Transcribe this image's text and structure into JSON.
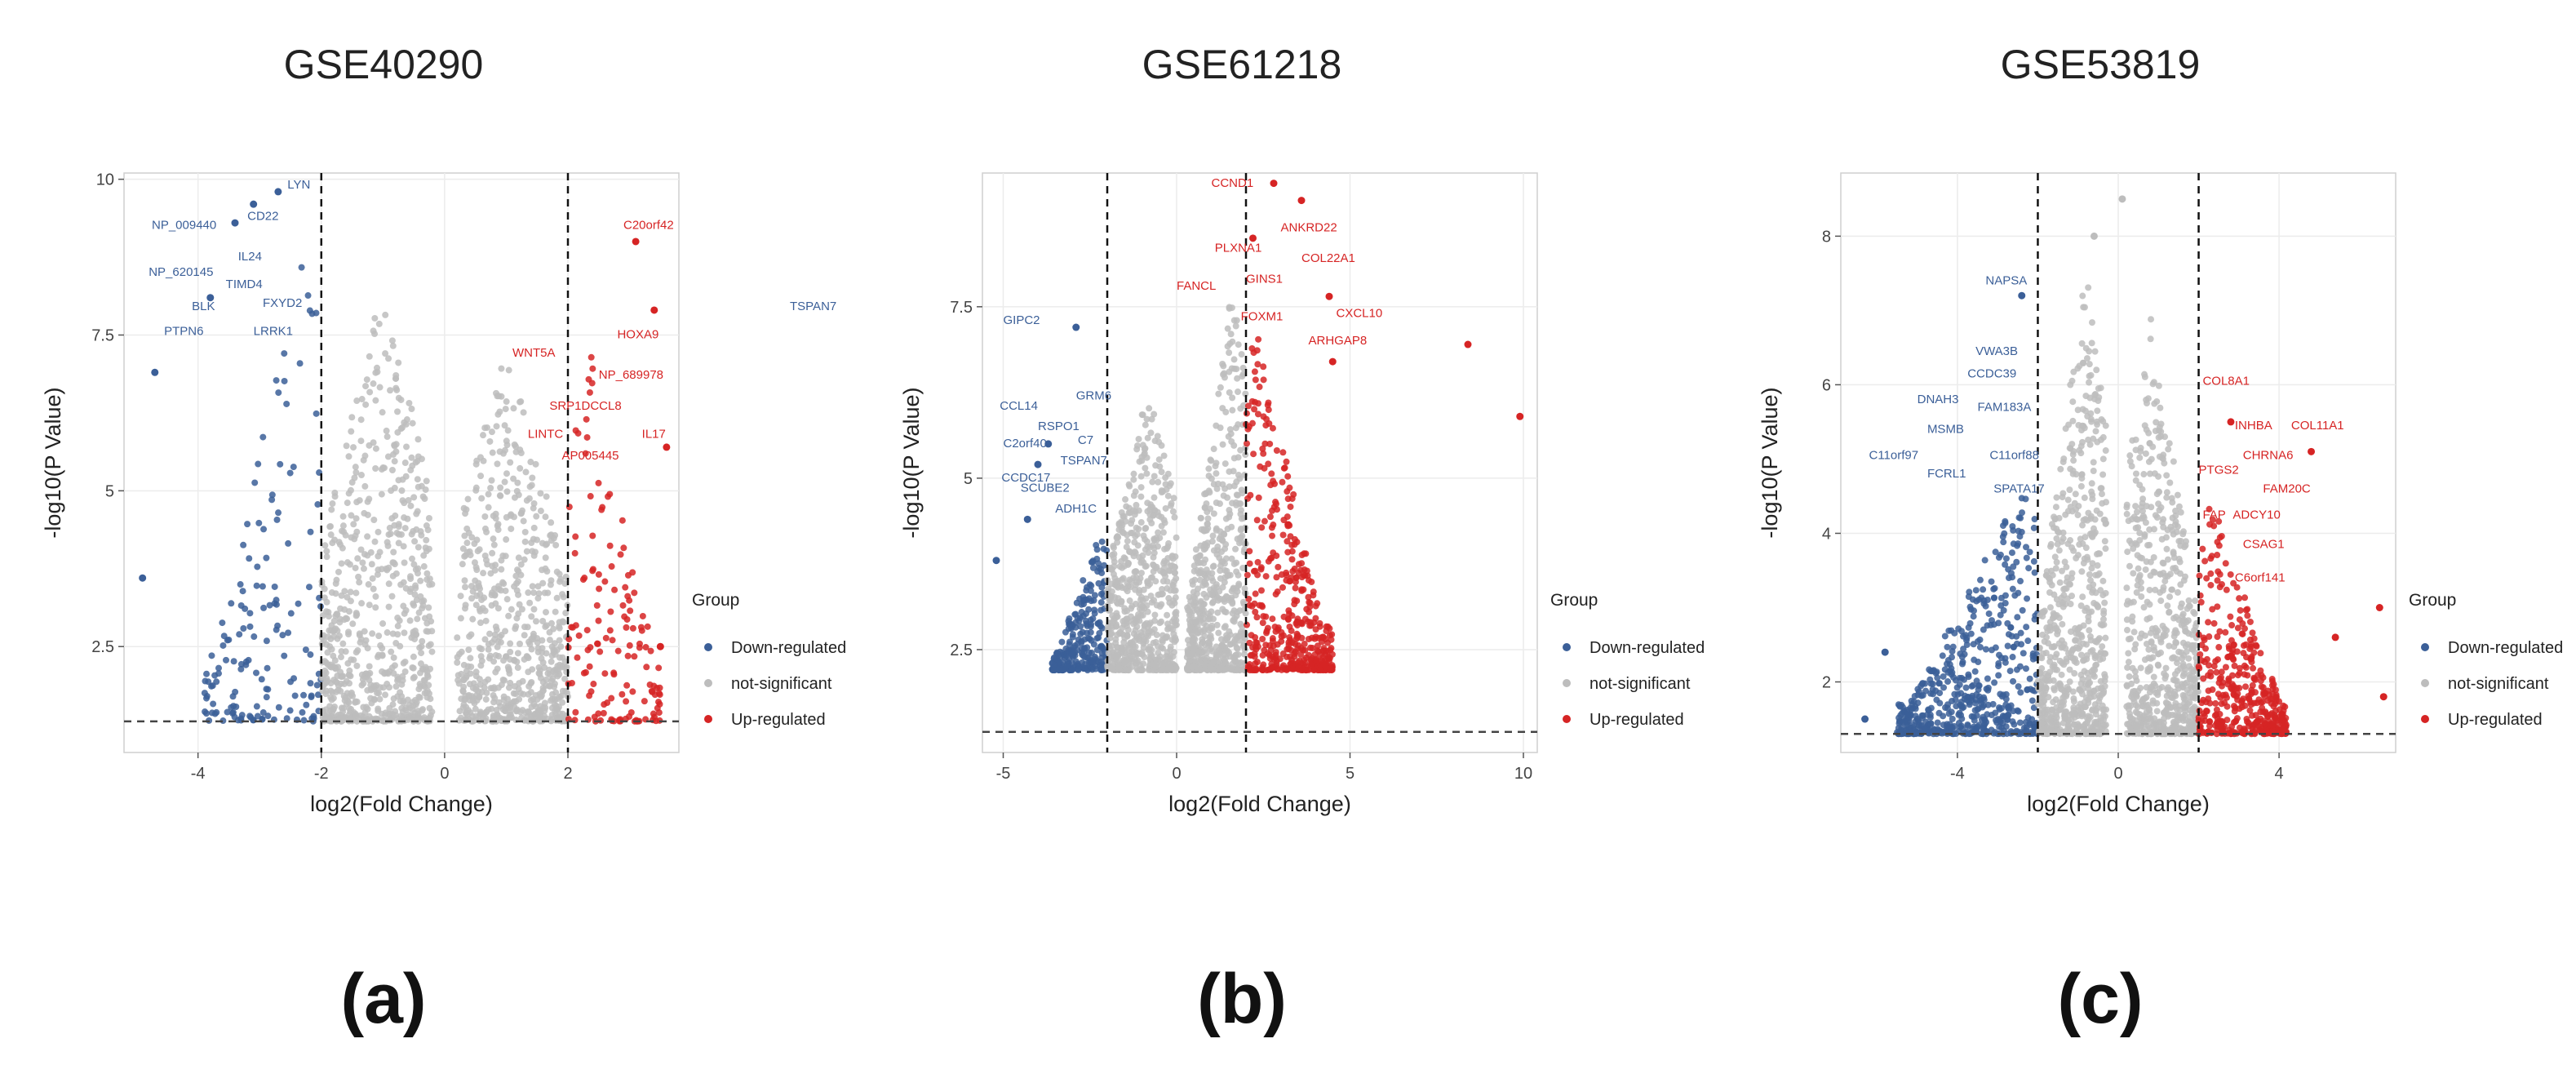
{
  "colors": {
    "down": "#3b5f98",
    "ns": "#bdbdbd",
    "up": "#d62424",
    "panel_bg": "#ffffff",
    "grid": "#ececec"
  },
  "legend": {
    "title": "Group",
    "items": [
      {
        "label": "Down-regulated",
        "key": "down"
      },
      {
        "label": "not-significant",
        "key": "ns"
      },
      {
        "label": "Up-regulated",
        "key": "up"
      }
    ]
  },
  "chart_data": [
    {
      "type": "scatter",
      "id": "a",
      "title": "GSE40290",
      "panel_label": "(a)",
      "xlabel": "log2(Fold Change)",
      "ylabel": "-log10(P Value)",
      "xlim": [
        -5.2,
        3.8
      ],
      "ylim": [
        0.8,
        10.1
      ],
      "xticks": [
        -4,
        -2,
        0,
        2
      ],
      "yticks": [
        2.5,
        5.0,
        7.5,
        10.0
      ],
      "vlines": [
        -2,
        2
      ],
      "hline": 1.3,
      "clouds": [
        {
          "xmin": -3.9,
          "xmax": -2.0,
          "ymin": 1.3,
          "ymax": 8.8,
          "count": 150,
          "group": "down",
          "peak": -2.3
        },
        {
          "xmin": -2.0,
          "xmax": -0.2,
          "ymin": 1.3,
          "ymax": 8.4,
          "count": 700,
          "group": "ns",
          "peak": -1.0
        },
        {
          "xmin": 0.2,
          "xmax": 2.0,
          "ymin": 1.3,
          "ymax": 7.3,
          "count": 650,
          "group": "ns",
          "peak": 1.0
        },
        {
          "xmin": 2.0,
          "xmax": 3.5,
          "ymin": 1.3,
          "ymax": 7.6,
          "count": 140,
          "group": "up",
          "peak": 2.3
        }
      ],
      "points": [
        {
          "x": -4.9,
          "y": 3.6,
          "group": "down"
        },
        {
          "x": -4.7,
          "y": 6.9,
          "group": "down"
        },
        {
          "x": -3.1,
          "y": 9.6,
          "group": "down"
        },
        {
          "x": -2.7,
          "y": 9.8,
          "group": "down"
        },
        {
          "x": -3.4,
          "y": 9.3,
          "group": "down"
        },
        {
          "x": -3.8,
          "y": 8.1,
          "group": "down"
        },
        {
          "x": 3.1,
          "y": 9.0,
          "group": "up"
        },
        {
          "x": 3.4,
          "y": 7.9,
          "group": "up"
        },
        {
          "x": 3.6,
          "y": 5.7,
          "group": "up"
        },
        {
          "x": 3.5,
          "y": 2.5,
          "group": "up"
        }
      ],
      "labels": [
        {
          "text": "LYN",
          "x": -2.55,
          "y": 9.85,
          "group": "down"
        },
        {
          "text": "NP_009440",
          "x": -4.75,
          "y": 9.2,
          "group": "down"
        },
        {
          "text": "CD22",
          "x": -3.2,
          "y": 9.35,
          "group": "down"
        },
        {
          "text": "NP_620145",
          "x": -4.8,
          "y": 8.45,
          "group": "down"
        },
        {
          "text": "IL24",
          "x": -3.35,
          "y": 8.7,
          "group": "down"
        },
        {
          "text": "TIMD4",
          "x": -3.55,
          "y": 8.25,
          "group": "down"
        },
        {
          "text": "BLK",
          "x": -4.1,
          "y": 7.9,
          "group": "down"
        },
        {
          "text": "FXYD2",
          "x": -2.95,
          "y": 7.95,
          "group": "down"
        },
        {
          "text": "PTPN6",
          "x": -4.55,
          "y": 7.5,
          "group": "down"
        },
        {
          "text": "LRRK1",
          "x": -3.1,
          "y": 7.5,
          "group": "down"
        },
        {
          "text": "TSPAN7",
          "x": 5.6,
          "y": 7.9,
          "group": "down"
        },
        {
          "text": "C20orf42",
          "x": 2.9,
          "y": 9.2,
          "group": "up"
        },
        {
          "text": "HOXA9",
          "x": 2.8,
          "y": 7.45,
          "group": "up"
        },
        {
          "text": "WNT5A",
          "x": 1.1,
          "y": 7.15,
          "group": "up"
        },
        {
          "text": "NP_689978",
          "x": 2.5,
          "y": 6.8,
          "group": "up"
        },
        {
          "text": "SRP1DCCL8",
          "x": 1.7,
          "y": 6.3,
          "group": "up"
        },
        {
          "text": "LINTC",
          "x": 1.35,
          "y": 5.85,
          "group": "up"
        },
        {
          "text": "IL17",
          "x": 3.2,
          "y": 5.85,
          "group": "up"
        },
        {
          "text": "AP005445",
          "x": 1.9,
          "y": 5.5,
          "group": "up"
        }
      ]
    },
    {
      "type": "scatter",
      "id": "b",
      "title": "GSE61218",
      "panel_label": "(b)",
      "xlabel": "log2(Fold Change)",
      "ylabel": "-log10(P Value)",
      "xlim": [
        -5.6,
        10.4
      ],
      "ylim": [
        1.0,
        9.45
      ],
      "xticks": [
        -5,
        0,
        5,
        10
      ],
      "yticks": [
        2.5,
        5.0,
        7.5
      ],
      "vlines": [
        -2,
        2
      ],
      "hline": 1.3,
      "clouds": [
        {
          "xmin": -3.6,
          "xmax": -2.0,
          "ymin": 2.2,
          "ymax": 4.2,
          "count": 260,
          "group": "down",
          "peak": -2.2
        },
        {
          "xmin": -2.0,
          "xmax": 0.0,
          "ymin": 2.2,
          "ymax": 6.4,
          "count": 650,
          "group": "ns",
          "peak": -0.8
        },
        {
          "xmin": 0.3,
          "xmax": 2.0,
          "ymin": 2.2,
          "ymax": 7.8,
          "count": 650,
          "group": "ns",
          "peak": 1.6
        },
        {
          "xmin": 2.0,
          "xmax": 4.5,
          "ymin": 2.2,
          "ymax": 7.6,
          "count": 440,
          "group": "up",
          "peak": 2.2
        }
      ],
      "points": [
        {
          "x": -5.2,
          "y": 3.8,
          "group": "down"
        },
        {
          "x": -4.3,
          "y": 4.4,
          "group": "down"
        },
        {
          "x": -4.0,
          "y": 5.2,
          "group": "down"
        },
        {
          "x": -2.9,
          "y": 7.2,
          "group": "down"
        },
        {
          "x": -3.7,
          "y": 5.5,
          "group": "down"
        },
        {
          "x": 2.8,
          "y": 9.3,
          "group": "up"
        },
        {
          "x": 3.6,
          "y": 9.05,
          "group": "up"
        },
        {
          "x": 8.4,
          "y": 6.95,
          "group": "up"
        },
        {
          "x": 9.9,
          "y": 5.9,
          "group": "up"
        },
        {
          "x": 4.4,
          "y": 7.65,
          "group": "up"
        },
        {
          "x": 2.2,
          "y": 8.5,
          "group": "up"
        },
        {
          "x": 4.5,
          "y": 6.7,
          "group": "up"
        }
      ],
      "labels": [
        {
          "text": "GIPC2",
          "x": -5.0,
          "y": 7.25,
          "group": "down"
        },
        {
          "text": "CCL14",
          "x": -5.1,
          "y": 6.0,
          "group": "down"
        },
        {
          "text": "GRM6",
          "x": -2.9,
          "y": 6.15,
          "group": "down"
        },
        {
          "text": "RSPO1",
          "x": -4.0,
          "y": 5.7,
          "group": "down"
        },
        {
          "text": "C2orf40",
          "x": -5.0,
          "y": 5.45,
          "group": "down"
        },
        {
          "text": "C7",
          "x": -2.85,
          "y": 5.5,
          "group": "down"
        },
        {
          "text": "TSPAN7",
          "x": -3.35,
          "y": 5.2,
          "group": "down"
        },
        {
          "text": "CCDC17",
          "x": -5.05,
          "y": 4.95,
          "group": "down"
        },
        {
          "text": "SCUBE2",
          "x": -4.5,
          "y": 4.8,
          "group": "down"
        },
        {
          "text": "ADH1C",
          "x": -3.5,
          "y": 4.5,
          "group": "down"
        },
        {
          "text": "CCND1",
          "x": 1.0,
          "y": 9.25,
          "group": "up"
        },
        {
          "text": "ANKRD22",
          "x": 3.0,
          "y": 8.6,
          "group": "up"
        },
        {
          "text": "PLXNA1",
          "x": 1.1,
          "y": 8.3,
          "group": "up"
        },
        {
          "text": "COL22A1",
          "x": 3.6,
          "y": 8.15,
          "group": "up"
        },
        {
          "text": "GINS1",
          "x": 2.0,
          "y": 7.85,
          "group": "up"
        },
        {
          "text": "CXCL10",
          "x": 4.6,
          "y": 7.35,
          "group": "up"
        },
        {
          "text": "FANCL",
          "x": 0.0,
          "y": 7.75,
          "group": "up"
        },
        {
          "text": "FOXM1",
          "x": 1.85,
          "y": 7.3,
          "group": "up"
        },
        {
          "text": "ARHGAP8",
          "x": 3.8,
          "y": 6.95,
          "group": "up"
        }
      ]
    },
    {
      "type": "scatter",
      "id": "c",
      "title": "GSE53819",
      "panel_label": "(c)",
      "xlabel": "log2(Fold Change)",
      "ylabel": "-log10(P Value)",
      "xlim": [
        -6.9,
        6.9
      ],
      "ylim": [
        1.05,
        8.85
      ],
      "xticks": [
        -4,
        0,
        4
      ],
      "yticks": [
        2,
        4,
        6,
        8
      ],
      "vlines": [
        -2,
        2
      ],
      "hline": 1.3,
      "clouds": [
        {
          "xmin": -5.5,
          "xmax": -2.0,
          "ymin": 1.3,
          "ymax": 4.6,
          "count": 560,
          "group": "down",
          "peak": -2.4
        },
        {
          "xmin": -2.0,
          "xmax": -0.3,
          "ymin": 1.3,
          "ymax": 7.6,
          "count": 700,
          "group": "ns",
          "peak": -0.8
        },
        {
          "xmin": 0.2,
          "xmax": 2.0,
          "ymin": 1.3,
          "ymax": 7.0,
          "count": 650,
          "group": "ns",
          "peak": 0.8
        },
        {
          "xmin": 2.0,
          "xmax": 4.2,
          "ymin": 1.3,
          "ymax": 4.5,
          "count": 420,
          "group": "up",
          "peak": 2.3
        }
      ],
      "points": [
        {
          "x": 0.1,
          "y": 8.5,
          "group": "ns"
        },
        {
          "x": -0.6,
          "y": 8.0,
          "group": "ns"
        },
        {
          "x": -6.3,
          "y": 1.5,
          "group": "down"
        },
        {
          "x": -5.8,
          "y": 2.4,
          "group": "down"
        },
        {
          "x": -2.4,
          "y": 7.2,
          "group": "down"
        },
        {
          "x": 6.5,
          "y": 3.0,
          "group": "up"
        },
        {
          "x": 6.6,
          "y": 1.8,
          "group": "up"
        },
        {
          "x": 5.4,
          "y": 2.6,
          "group": "up"
        },
        {
          "x": 2.8,
          "y": 5.5,
          "group": "up"
        },
        {
          "x": 4.8,
          "y": 5.1,
          "group": "up"
        }
      ],
      "labels": [
        {
          "text": "NAPSA",
          "x": -3.3,
          "y": 7.35,
          "group": "down"
        },
        {
          "text": "VWA3B",
          "x": -3.55,
          "y": 6.4,
          "group": "down"
        },
        {
          "text": "CCDC39",
          "x": -3.75,
          "y": 6.1,
          "group": "down"
        },
        {
          "text": "DNAH3",
          "x": -5.0,
          "y": 5.75,
          "group": "down"
        },
        {
          "text": "FAM183A",
          "x": -3.5,
          "y": 5.65,
          "group": "down"
        },
        {
          "text": "MSMB",
          "x": -4.75,
          "y": 5.35,
          "group": "down"
        },
        {
          "text": "C11orf97",
          "x": -6.2,
          "y": 5.0,
          "group": "down"
        },
        {
          "text": "C11orf88",
          "x": -3.2,
          "y": 5.0,
          "group": "down"
        },
        {
          "text": "FCRL1",
          "x": -4.75,
          "y": 4.75,
          "group": "down"
        },
        {
          "text": "SPATA17",
          "x": -3.1,
          "y": 4.55,
          "group": "down"
        },
        {
          "text": "COL8A1",
          "x": 2.1,
          "y": 6.0,
          "group": "up"
        },
        {
          "text": "INHBA",
          "x": 2.9,
          "y": 5.4,
          "group": "up"
        },
        {
          "text": "COL11A1",
          "x": 4.3,
          "y": 5.4,
          "group": "up"
        },
        {
          "text": "CHRNA6",
          "x": 3.1,
          "y": 5.0,
          "group": "up"
        },
        {
          "text": "PTGS2",
          "x": 2.0,
          "y": 4.8,
          "group": "up"
        },
        {
          "text": "FAM20C",
          "x": 3.6,
          "y": 4.55,
          "group": "up"
        },
        {
          "text": "FAP",
          "x": 2.1,
          "y": 4.2,
          "group": "up"
        },
        {
          "text": "ADCY10",
          "x": 2.85,
          "y": 4.2,
          "group": "up"
        },
        {
          "text": "CSAG1",
          "x": 3.1,
          "y": 3.8,
          "group": "up"
        },
        {
          "text": "C6orf141",
          "x": 2.9,
          "y": 3.35,
          "group": "up"
        }
      ]
    }
  ]
}
